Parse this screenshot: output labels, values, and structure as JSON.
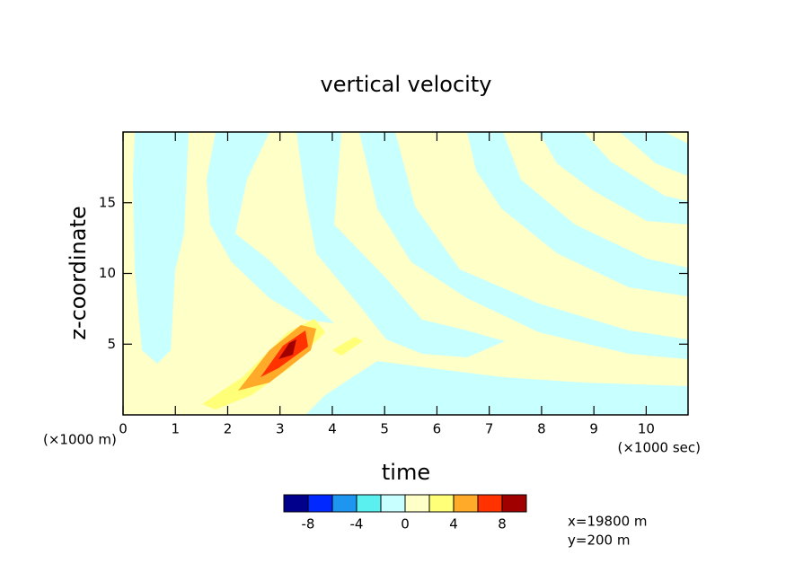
{
  "chart_data": {
    "type": "contourf",
    "title": "vertical velocity",
    "xlabel": "time",
    "ylabel": "z-coordinate",
    "x_unit": "(×1000 sec)",
    "y_unit": "(×1000 m)",
    "xlim": [
      0,
      10.8
    ],
    "xticks": [
      0,
      1,
      2,
      3,
      4,
      5,
      6,
      7,
      8,
      9,
      10
    ],
    "ylim": [
      0,
      20
    ],
    "yticks": [
      5,
      10,
      15
    ],
    "colorbar": {
      "levels": [
        -10,
        -8,
        -6,
        -4,
        -2,
        0,
        2,
        4,
        6,
        8,
        10
      ],
      "colors": [
        "#00008c",
        "#0028ff",
        "#1e96f0",
        "#5af0f0",
        "#c8ffff",
        "#ffffc8",
        "#ffff78",
        "#ffaa28",
        "#ff3200",
        "#a00000"
      ],
      "ticks": [
        -8,
        -4,
        0,
        4,
        8
      ]
    },
    "annotations": [
      "x=19800 m",
      "y=200 m"
    ]
  }
}
